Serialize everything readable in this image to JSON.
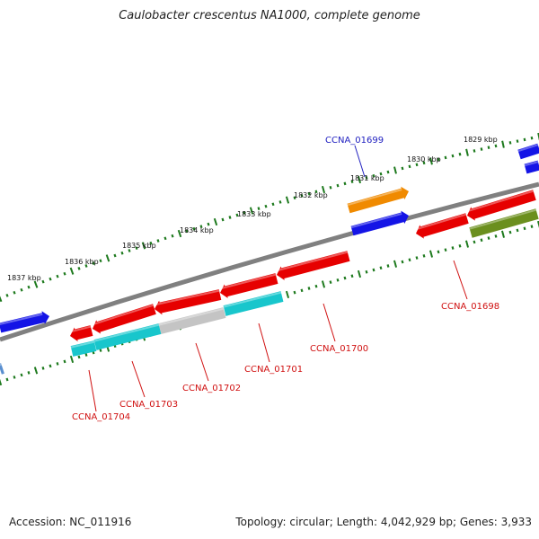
{
  "title": "Caulobacter crescentus NA1000, complete genome",
  "footer": {
    "accession": "Accession: NC_011916",
    "summary": "Topology: circular; Length: 4,042,929 bp; Genes: 3,933"
  },
  "colors": {
    "backbone": "#808080",
    "ticks": "#1e7a1e",
    "forward_gene": "#1414e6",
    "reverse_gene": "#e60000",
    "cyan_gene": "#18c6cc",
    "gray_gene": "#c4c4c4",
    "orange_gene": "#f08a00",
    "olive_gene": "#6b8f1e",
    "label_forward": "#2020c0",
    "label_reverse": "#d01010"
  },
  "kbp_labels": [
    "1829 kbp",
    "1830 kbp",
    "1831 kbp",
    "1832 kbp",
    "1833 kbp",
    "1834 kbp",
    "1835 kbp",
    "1836 kbp",
    "1837 kbp"
  ],
  "gene_labels": [
    {
      "id": "ccna-01699",
      "text": "CCNA_01699",
      "strand": "forward"
    },
    {
      "id": "ccna-01698",
      "text": "CCNA_01698",
      "strand": "reverse"
    },
    {
      "id": "ccna-01700",
      "text": "CCNA_01700",
      "strand": "reverse"
    },
    {
      "id": "ccna-01701",
      "text": "CCNA_01701",
      "strand": "reverse"
    },
    {
      "id": "ccna-01702",
      "text": "CCNA_01702",
      "strand": "reverse"
    },
    {
      "id": "ccna-01703",
      "text": "CCNA_01703",
      "strand": "reverse"
    },
    {
      "id": "ccna-01704",
      "text": "CCNA_01704",
      "strand": "reverse"
    }
  ]
}
